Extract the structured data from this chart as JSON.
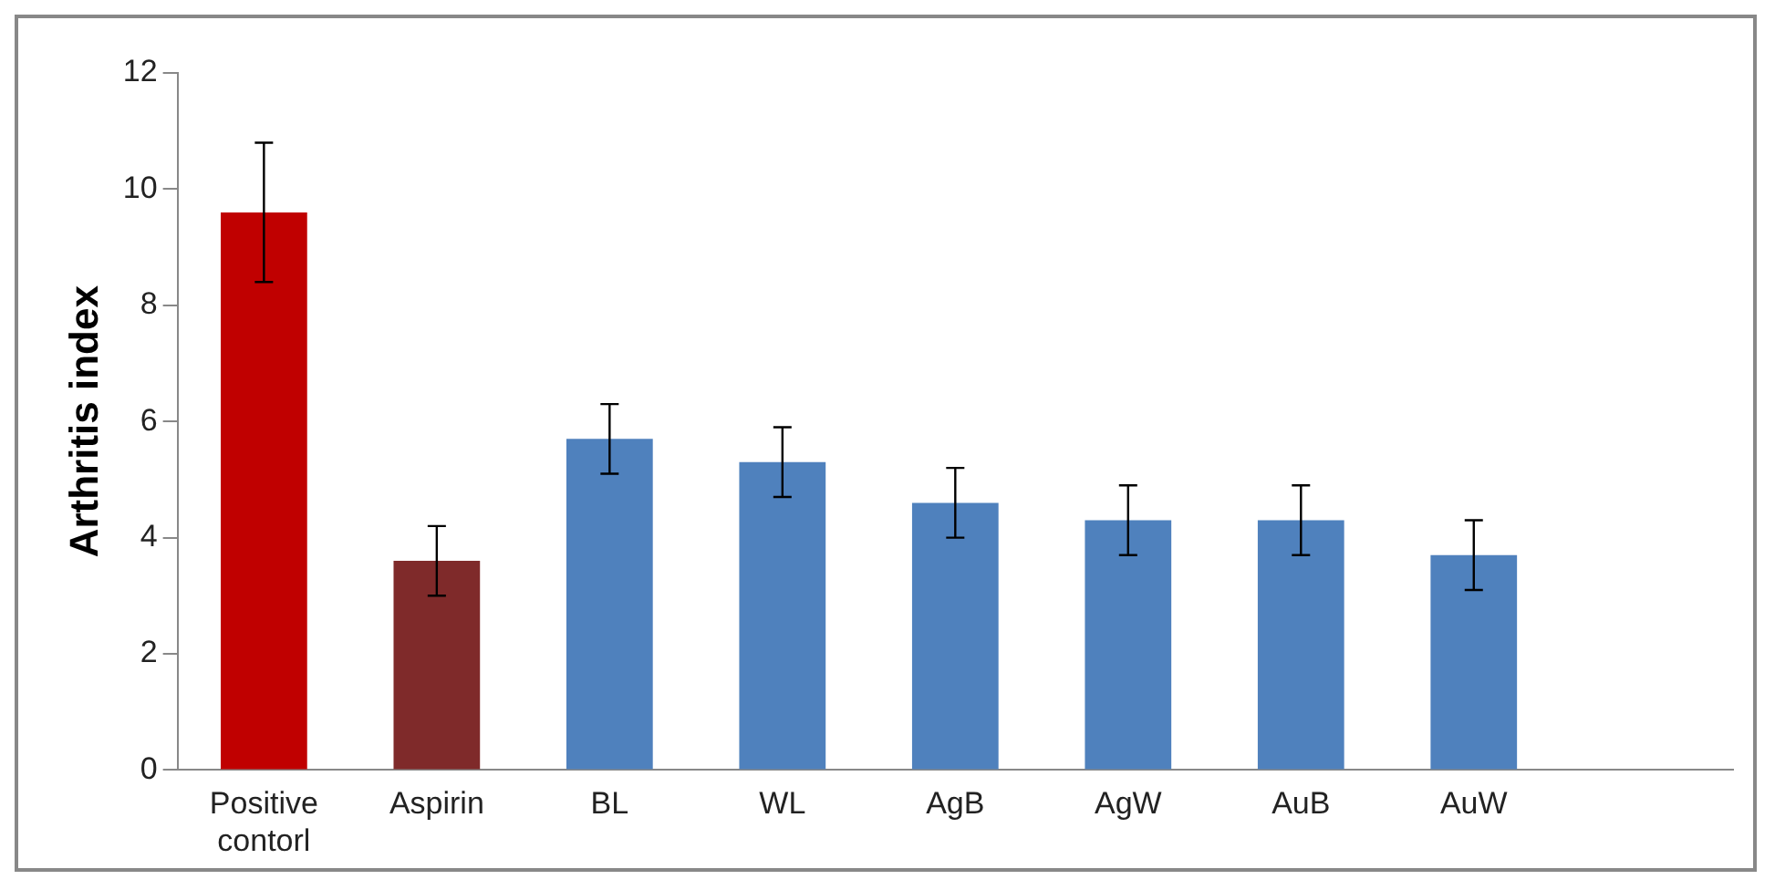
{
  "chart_data": {
    "type": "bar",
    "ylabel": "Arthritis index",
    "categories": [
      "Positive contorl",
      "Aspirin",
      "BL",
      "WL",
      "AgB",
      "AgW",
      "AuB",
      "AuW",
      null
    ],
    "values": [
      9.6,
      3.6,
      5.7,
      5.3,
      4.6,
      4.3,
      4.3,
      3.7,
      null
    ],
    "errors": [
      1.2,
      0.6,
      0.6,
      0.6,
      0.6,
      0.6,
      0.6,
      0.6,
      null
    ],
    "colors": [
      "#c00000",
      "#7f2a2a",
      "#4f81bd",
      "#4f81bd",
      "#4f81bd",
      "#4f81bd",
      "#4f81bd",
      "#4f81bd",
      "#4f81bd"
    ],
    "ylim": [
      0,
      12
    ],
    "yticks": [
      0,
      2,
      4,
      6,
      8,
      10,
      12
    ],
    "grid": false,
    "legend": false
  }
}
